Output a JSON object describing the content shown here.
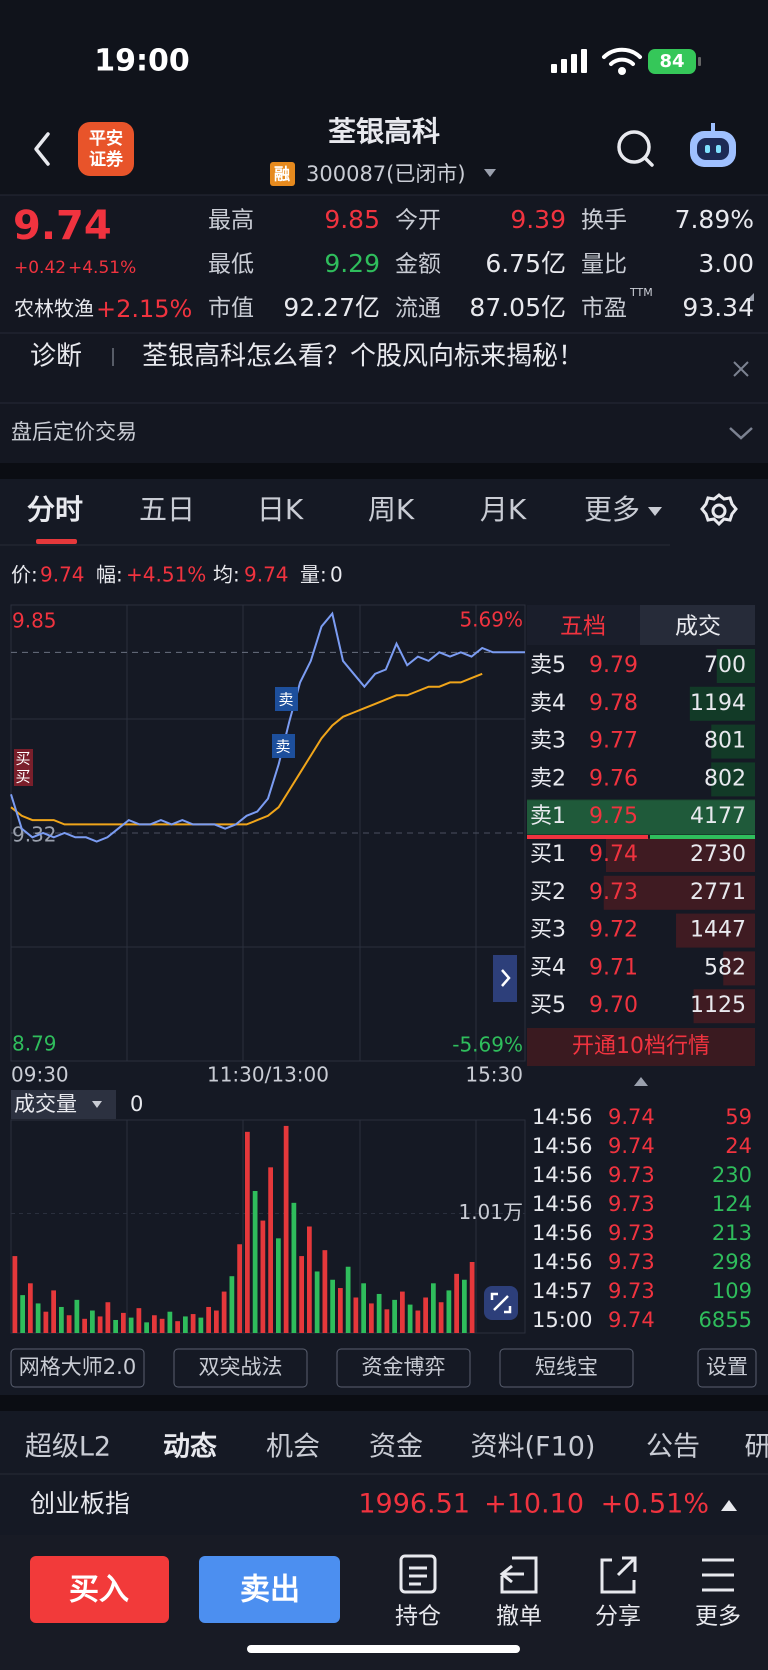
{
  "status_bar": {
    "time": "19:00",
    "battery": "84"
  },
  "header": {
    "logo": [
      "平安",
      "证券"
    ],
    "title": "荃银高科",
    "badge": "融",
    "code": "300087(已闭市)"
  },
  "quote": {
    "price": "9.74",
    "change": "+0.42",
    "change_pct": "+4.51%",
    "sector": "农林牧渔",
    "sector_change": "+2.15%",
    "stats": [
      {
        "label": "最高",
        "value": "9.85",
        "color": "#f0333f"
      },
      {
        "label": "今开",
        "value": "9.39",
        "color": "#f0333f"
      },
      {
        "label": "换手",
        "value": "7.89%",
        "color": "#e8e9ee"
      },
      {
        "label": "最低",
        "value": "9.29",
        "color": "#2fbd5c"
      },
      {
        "label": "金额",
        "value": "6.75亿",
        "color": "#e8e9ee"
      },
      {
        "label": "量比",
        "value": "3.00",
        "color": "#e8e9ee"
      },
      {
        "label": "市值",
        "value": "92.27亿",
        "color": "#e8e9ee"
      },
      {
        "label": "流通",
        "value": "87.05亿",
        "color": "#e8e9ee"
      },
      {
        "label": "市盈",
        "sup": "TTM",
        "value": "93.34",
        "color": "#e8e9ee"
      }
    ]
  },
  "banner": {
    "tag": "诊断",
    "text": "荃银高科怎么看？个股风向标来揭秘！"
  },
  "after_hours": "盘后定价交易",
  "tabs": [
    "分时",
    "五日",
    "日K",
    "周K",
    "月K",
    "更多"
  ],
  "info": [
    {
      "label": "价:",
      "value": "9.74"
    },
    {
      "label": "幅:",
      "value": "+4.51%"
    },
    {
      "label": "均:",
      "value": "9.74"
    },
    {
      "label": "量:",
      "value": "0"
    }
  ],
  "intraday": {
    "ylim": [
      8.79,
      9.85
    ],
    "yticks": [
      8.79,
      9.32,
      9.85
    ],
    "pct_labels": [
      "5.69%",
      "-5.69%"
    ],
    "last_price": 9.74,
    "x_labels": [
      "09:30",
      "11:30/13:00",
      "15:30"
    ],
    "price_color": "#7b9cf2",
    "avg_color": "#f0a51a",
    "price": [
      9.41,
      9.33,
      9.31,
      9.32,
      9.31,
      9.32,
      9.31,
      9.31,
      9.3,
      9.31,
      9.33,
      9.35,
      9.34,
      9.34,
      9.35,
      9.34,
      9.35,
      9.34,
      9.34,
      9.34,
      9.33,
      9.34,
      9.36,
      9.37,
      9.4,
      9.48,
      9.58,
      9.67,
      9.72,
      9.8,
      9.83,
      9.72,
      9.69,
      9.66,
      9.69,
      9.7,
      9.76,
      9.71,
      9.73,
      9.72,
      9.74,
      9.73,
      9.74,
      9.73,
      9.75,
      9.74,
      9.74,
      9.74,
      9.74
    ],
    "avg": [
      9.38,
      9.36,
      9.35,
      9.35,
      9.35,
      9.34,
      9.34,
      9.34,
      9.34,
      9.34,
      9.34,
      9.34,
      9.34,
      9.34,
      9.34,
      9.34,
      9.34,
      9.34,
      9.34,
      9.34,
      9.34,
      9.34,
      9.34,
      9.35,
      9.36,
      9.38,
      9.42,
      9.46,
      9.5,
      9.54,
      9.57,
      9.59,
      9.6,
      9.61,
      9.62,
      9.63,
      9.64,
      9.64,
      9.65,
      9.66,
      9.66,
      9.67,
      9.67,
      9.68,
      9.69,
      null,
      null,
      null,
      null
    ],
    "markers": [
      "买",
      "买",
      "卖",
      "卖"
    ]
  },
  "order_book": {
    "tabs": [
      "五档",
      "成交"
    ],
    "rows": [
      {
        "label": "卖5",
        "price": "9.79",
        "volume": 700
      },
      {
        "label": "卖4",
        "price": "9.78",
        "volume": 1194
      },
      {
        "label": "卖3",
        "price": "9.77",
        "volume": 801
      },
      {
        "label": "卖2",
        "price": "9.76",
        "volume": 802
      },
      {
        "label": "卖1",
        "price": "9.75",
        "volume": 4177
      },
      {
        "label": "买1",
        "price": "9.74",
        "volume": 2730
      },
      {
        "label": "买2",
        "price": "9.73",
        "volume": 2771
      },
      {
        "label": "买3",
        "price": "9.72",
        "volume": 1447
      },
      {
        "label": "买4",
        "price": "9.71",
        "volume": 582
      },
      {
        "label": "买5",
        "price": "9.70",
        "volume": 1125
      }
    ],
    "upgrade": "开通10档行情"
  },
  "trades": [
    {
      "time": "14:56",
      "price": "9.74",
      "volume": 59,
      "color": "#f0333f"
    },
    {
      "time": "14:56",
      "price": "9.74",
      "volume": 24,
      "color": "#f0333f"
    },
    {
      "time": "14:56",
      "price": "9.73",
      "volume": 230,
      "color": "#2fbd5c"
    },
    {
      "time": "14:56",
      "price": "9.73",
      "volume": 124,
      "color": "#2fbd5c"
    },
    {
      "time": "14:56",
      "price": "9.73",
      "volume": 213,
      "color": "#2fbd5c"
    },
    {
      "time": "14:56",
      "price": "9.73",
      "volume": 298,
      "color": "#2fbd5c"
    },
    {
      "time": "14:57",
      "price": "9.73",
      "volume": 109,
      "color": "#2fbd5c"
    },
    {
      "time": "15:00",
      "price": "9.74",
      "volume": 6855,
      "color": "#2fbd5c"
    }
  ],
  "volume": {
    "label": "成交量",
    "value": "0",
    "ylim": [
      0,
      18000
    ],
    "yticks": [
      {
        "value": 10100,
        "label": "1.01万"
      }
    ],
    "values": [
      6500,
      3200,
      4200,
      2500,
      1800,
      3600,
      2200,
      1500,
      2800,
      1200,
      1900,
      1400,
      2600,
      1100,
      1700,
      1300,
      2100,
      900,
      1500,
      1200,
      1800,
      1000,
      1400,
      1600,
      1300,
      2200,
      1900,
      3500,
      4800,
      7500,
      17000,
      12000,
      9500,
      14000,
      8000,
      17500,
      11000,
      6500,
      9000,
      5200,
      7000,
      4500,
      3800,
      5600,
      3000,
      4200,
      2500,
      3300,
      2000,
      2800,
      3500,
      2400,
      1900,
      3000,
      4200,
      2600,
      3600,
      5000,
      4500,
      6000
    ],
    "colors": [
      "#e5383b",
      "#2fbd5c",
      "#e5383b",
      "#2fbd5c",
      "#e5383b",
      "#e5383b",
      "#2fbd5c",
      "#e5383b",
      "#2fbd5c",
      "#e5383b",
      "#2fbd5c",
      "#e5383b",
      "#e5383b",
      "#2fbd5c",
      "#e5383b",
      "#2fbd5c",
      "#e5383b",
      "#2fbd5c",
      "#e5383b",
      "#e5383b",
      "#2fbd5c",
      "#e5383b",
      "#2fbd5c",
      "#e5383b",
      "#2fbd5c",
      "#e5383b",
      "#e5383b",
      "#e5383b",
      "#2fbd5c",
      "#e5383b",
      "#e5383b",
      "#2fbd5c",
      "#e5383b",
      "#e5383b",
      "#2fbd5c",
      "#e5383b",
      "#2fbd5c",
      "#e5383b",
      "#e5383b",
      "#2fbd5c",
      "#e5383b",
      "#2fbd5c",
      "#e5383b",
      "#2fbd5c",
      "#e5383b",
      "#2fbd5c",
      "#e5383b",
      "#2fbd5c",
      "#e5383b",
      "#2fbd5c",
      "#e5383b",
      "#2fbd5c",
      "#e5383b",
      "#e5383b",
      "#2fbd5c",
      "#e5383b",
      "#2fbd5c",
      "#e5383b",
      "#2fbd5c",
      "#e5383b"
    ]
  },
  "tools": [
    "网格大师2.0",
    "双突战法",
    "资金博弈",
    "短线宝",
    "设置"
  ],
  "bottom_tabs": [
    "超级L2",
    "动态",
    "机会",
    "资金",
    "资料(F10)",
    "公告",
    "研"
  ],
  "index": {
    "name": "创业板指",
    "value": "1996.51",
    "change": "+10.10",
    "change_pct": "+0.51%"
  },
  "actions": {
    "buy": "买入",
    "sell": "卖出",
    "items": [
      "持仓",
      "撤单",
      "分享",
      "更多"
    ]
  }
}
